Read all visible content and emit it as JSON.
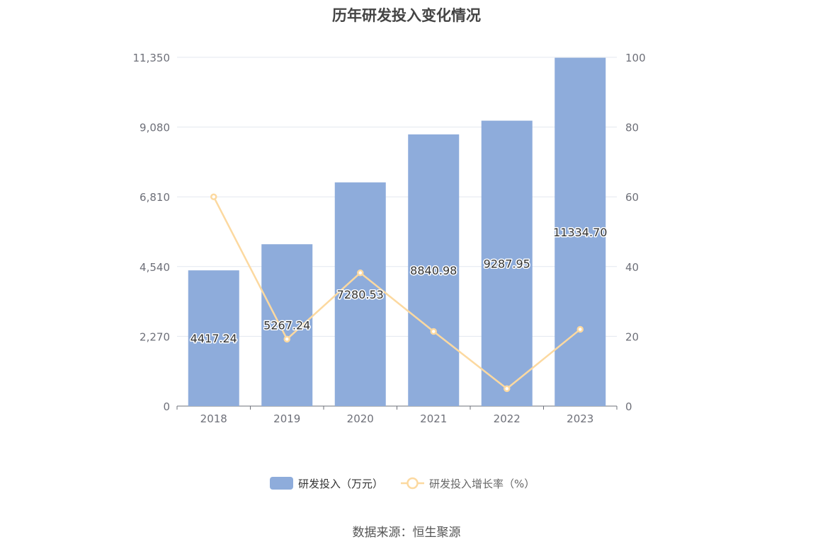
{
  "chart_data": {
    "type": "bar",
    "title": "历年研发投入变化情况",
    "categories": [
      "2018",
      "2019",
      "2020",
      "2021",
      "2022",
      "2023"
    ],
    "series": [
      {
        "name": "研发投入（万元）",
        "type": "bar",
        "axis": "left",
        "color": "#8eacdb",
        "values": [
          4417.24,
          5267.24,
          7280.53,
          8840.98,
          9287.95,
          11334.7
        ],
        "labels": [
          "4417.24",
          "5267.24",
          "7280.53",
          "8840.98",
          "9287.95",
          "11334.70"
        ]
      },
      {
        "name": "研发投入增长率（%）",
        "type": "line",
        "axis": "right",
        "color": "#fcd9a0",
        "values": [
          60.0,
          19.2,
          38.2,
          21.4,
          5.0,
          22.0
        ]
      }
    ],
    "y_left": {
      "min": 0,
      "max": 11350,
      "ticks": [
        "0",
        "2,270",
        "4,540",
        "6,810",
        "9,080",
        "11,350"
      ]
    },
    "y_right": {
      "min": 0,
      "max": 100,
      "ticks": [
        "0",
        "20",
        "40",
        "60",
        "80",
        "100"
      ]
    },
    "grid": true,
    "legend_position": "bottom-center"
  },
  "source": "数据来源：恒生聚源"
}
